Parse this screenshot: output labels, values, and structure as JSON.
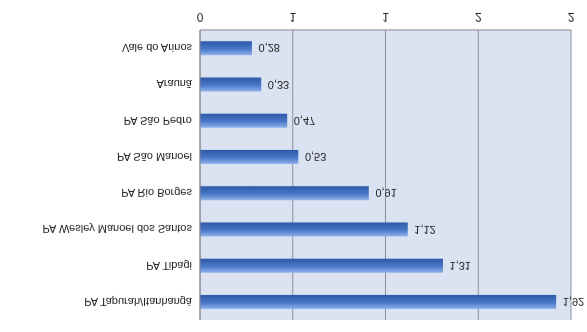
{
  "chart_data": {
    "type": "bar",
    "orientation": "horizontal",
    "categories": [
      "Vale do Arinos",
      "Araunã",
      "PA São Pedro",
      "PA São Manoel",
      "PA Rio Borges",
      "PA Wesley Manoel dos Santos",
      "PA Tibagi",
      "PA Tapurah/Itanhangá"
    ],
    "values": [
      0.28,
      0.33,
      0.47,
      0.53,
      0.91,
      1.12,
      1.31,
      1.92
    ],
    "value_labels": [
      "0,28",
      "0,33",
      "0,47",
      "0,53",
      "0,91",
      "1,12",
      "1,31",
      "1,92"
    ],
    "color": "#4a78c8",
    "xlim": [
      0,
      2
    ],
    "xticks": [
      0,
      {
        "value": 0.5,
        "label": "1"
      },
      1,
      {
        "value": 1.5,
        "label": "2"
      },
      2
    ],
    "grid": true,
    "data_labels": true
  }
}
